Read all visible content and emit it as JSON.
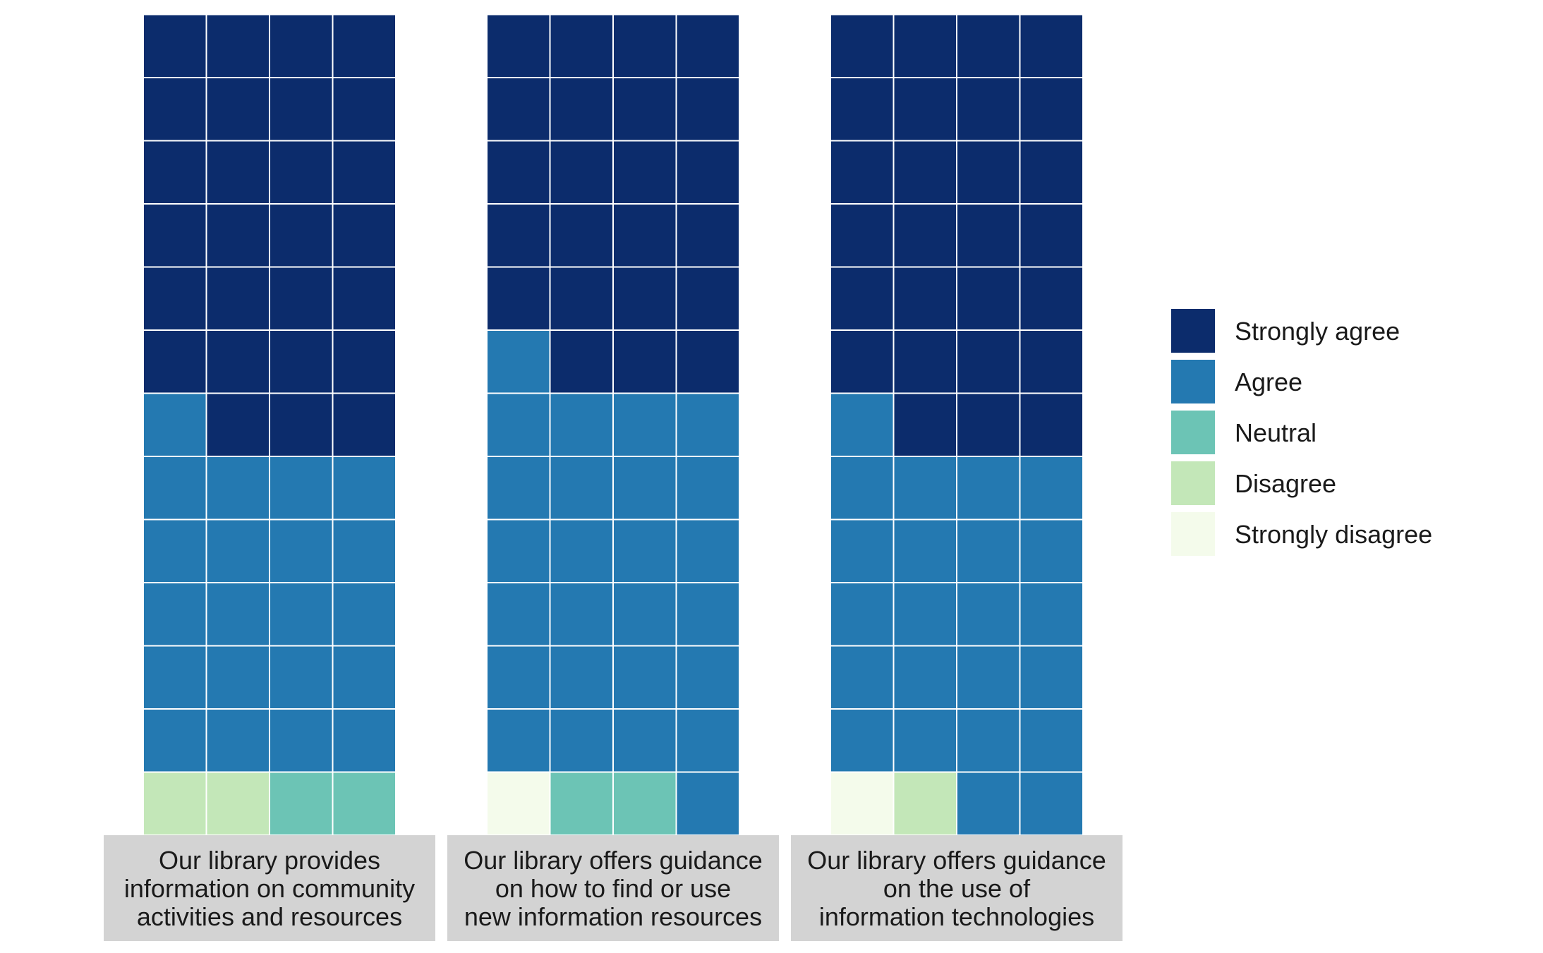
{
  "chart_data": {
    "type": "waffle",
    "columns_per_panel": 4,
    "fill_order": "bottom-to-top, left-to-right",
    "categories": [
      "Strongly disagree",
      "Disagree",
      "Neutral",
      "Agree",
      "Strongly agree"
    ],
    "colors": {
      "Strongly agree": "#0c2c6c",
      "Agree": "#2479b1",
      "Neutral": "#6cc4b5",
      "Disagree": "#c3e7b8",
      "Strongly disagree": "#f4fbeb"
    },
    "panels": [
      {
        "title_lines": [
          "Our library provides",
          "information on community",
          "activities and resources"
        ],
        "counts": {
          "Strongly disagree": 0,
          "Disagree": 2,
          "Neutral": 2,
          "Agree": 21,
          "Strongly agree": 27
        }
      },
      {
        "title_lines": [
          "Our library offers guidance",
          "on how to find or use",
          "new information resources"
        ],
        "counts": {
          "Strongly disagree": 1,
          "Disagree": 0,
          "Neutral": 2,
          "Agree": 26,
          "Strongly agree": 23
        }
      },
      {
        "title_lines": [
          "Our library offers guidance",
          "on the use of",
          "information technologies"
        ],
        "counts": {
          "Strongly disagree": 1,
          "Disagree": 1,
          "Neutral": 0,
          "Agree": 23,
          "Strongly agree": 27
        }
      }
    ],
    "legend": {
      "placement": "right",
      "items": [
        "Strongly agree",
        "Agree",
        "Neutral",
        "Disagree",
        "Strongly disagree"
      ]
    }
  }
}
